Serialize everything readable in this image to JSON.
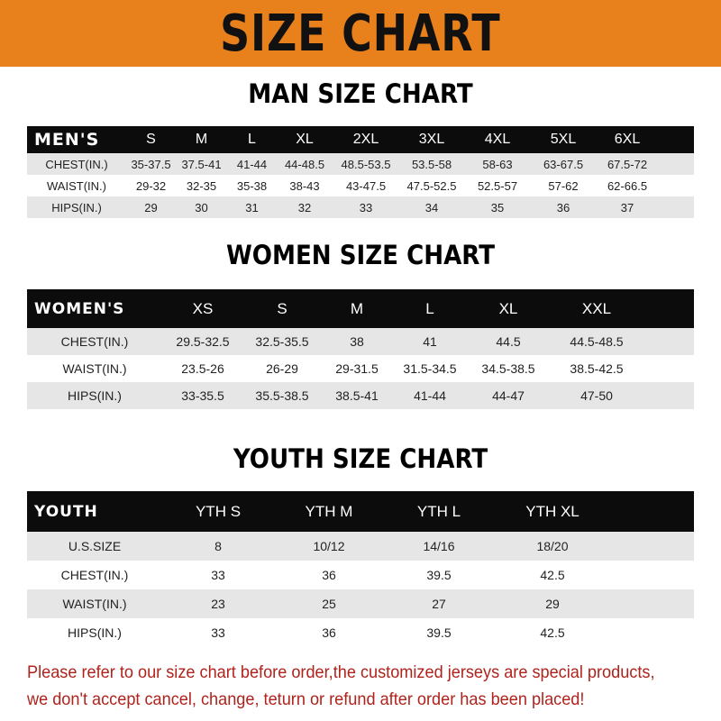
{
  "banner_title": "SIZE CHART",
  "men": {
    "title": "MAN SIZE CHART",
    "header": "MEN'S",
    "sizes": [
      "S",
      "M",
      "L",
      "XL",
      "2XL",
      "3XL",
      "4XL",
      "5XL",
      "6XL"
    ],
    "rows": [
      {
        "label": "CHEST(IN.)",
        "values": [
          "35-37.5",
          "37.5-41",
          "41-44",
          "44-48.5",
          "48.5-53.5",
          "53.5-58",
          "58-63",
          "63-67.5",
          "67.5-72"
        ]
      },
      {
        "label": "WAIST(IN.)",
        "values": [
          "29-32",
          "32-35",
          "35-38",
          "38-43",
          "43-47.5",
          "47.5-52.5",
          "52.5-57",
          "57-62",
          "62-66.5"
        ]
      },
      {
        "label": "HIPS(IN.)",
        "values": [
          "29",
          "30",
          "31",
          "32",
          "33",
          "34",
          "35",
          "36",
          "37"
        ]
      }
    ]
  },
  "women": {
    "title": "WOMEN SIZE CHART",
    "header": "WOMEN'S",
    "sizes": [
      "XS",
      "S",
      "M",
      "L",
      "XL",
      "XXL"
    ],
    "rows": [
      {
        "label": "CHEST(IN.)",
        "values": [
          "29.5-32.5",
          "32.5-35.5",
          "38",
          "41",
          "44.5",
          "44.5-48.5"
        ]
      },
      {
        "label": "WAIST(IN.)",
        "values": [
          "23.5-26",
          "26-29",
          "29-31.5",
          "31.5-34.5",
          "34.5-38.5",
          "38.5-42.5"
        ]
      },
      {
        "label": "HIPS(IN.)",
        "values": [
          "33-35.5",
          "35.5-38.5",
          "38.5-41",
          "41-44",
          "44-47",
          "47-50"
        ]
      }
    ]
  },
  "youth": {
    "title": "YOUTH SIZE CHART",
    "header": "YOUTH",
    "sizes": [
      "YTH S",
      "YTH M",
      "YTH L",
      "YTH XL"
    ],
    "rows": [
      {
        "label": "U.S.SIZE",
        "values": [
          "8",
          "10/12",
          "14/16",
          "18/20"
        ]
      },
      {
        "label": "CHEST(IN.)",
        "values": [
          "33",
          "36",
          "39.5",
          "42.5"
        ]
      },
      {
        "label": "WAIST(IN.)",
        "values": [
          "23",
          "25",
          "27",
          "29"
        ]
      },
      {
        "label": "HIPS(IN.)",
        "values": [
          "33",
          "36",
          "39.5",
          "42.5"
        ]
      }
    ]
  },
  "notice": [
    "Please refer to our size chart before order,the customized jerseys are special products,",
    "we don't accept cancel, change, teturn or refund after order has been placed!"
  ],
  "colors": {
    "banner": "#e8801c",
    "header_row": "#0c0c0c",
    "stripe": "#e6e6e6",
    "notice": "#b0231c"
  }
}
